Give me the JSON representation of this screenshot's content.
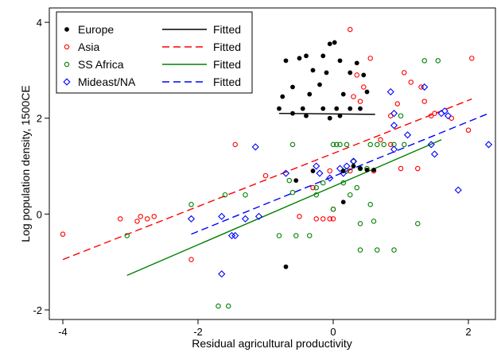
{
  "chart_data": {
    "type": "scatter",
    "xlabel": "Residual agricultural productivity",
    "ylabel": "Log population density, 1500CE",
    "xlim": [
      -4.2,
      2.4
    ],
    "ylim": [
      -2.2,
      4.3
    ],
    "xticks": [
      -4,
      -2,
      0,
      2
    ],
    "yticks": [
      -2,
      0,
      2,
      4
    ],
    "grid": false,
    "legend_position": "top-left",
    "legend": [
      {
        "marker_label": "Europe",
        "line_label": "Fitted"
      },
      {
        "marker_label": "Asia",
        "line_label": "Fitted"
      },
      {
        "marker_label": "SS Africa",
        "line_label": "Fitted"
      },
      {
        "marker_label": "Mideast/NA",
        "line_label": "Fitted"
      }
    ],
    "series": [
      {
        "name": "Europe",
        "marker": "filled-circle",
        "color": "#000000",
        "points": [
          [
            -0.05,
            3.55
          ],
          [
            0.02,
            3.58
          ],
          [
            -0.15,
            3.3
          ],
          [
            -0.4,
            3.3
          ],
          [
            -0.7,
            3.2
          ],
          [
            -0.5,
            3.25
          ],
          [
            0.1,
            3.2
          ],
          [
            0.35,
            3.15
          ],
          [
            -0.3,
            3.0
          ],
          [
            -0.1,
            2.95
          ],
          [
            0.25,
            2.95
          ],
          [
            0.45,
            2.9
          ],
          [
            -0.2,
            2.7
          ],
          [
            -0.6,
            2.65
          ],
          [
            -0.35,
            2.5
          ],
          [
            -0.75,
            2.45
          ],
          [
            0.15,
            2.5
          ],
          [
            0.5,
            2.55
          ],
          [
            -0.8,
            2.2
          ],
          [
            -0.45,
            2.2
          ],
          [
            -0.15,
            2.2
          ],
          [
            0.05,
            2.2
          ],
          [
            0.25,
            2.2
          ],
          [
            0.4,
            2.2
          ],
          [
            -0.6,
            2.1
          ],
          [
            -0.4,
            2.05
          ],
          [
            0.1,
            2.05
          ],
          [
            -0.05,
            2.0
          ],
          [
            0.3,
            1.0
          ],
          [
            0.4,
            0.95
          ],
          [
            0.5,
            0.92
          ],
          [
            0.6,
            0.92
          ],
          [
            0.15,
            0.9
          ],
          [
            -0.3,
            0.9
          ],
          [
            -0.55,
            0.7
          ],
          [
            0.15,
            0.25
          ],
          [
            -0.7,
            -1.1
          ]
        ]
      },
      {
        "name": "Asia",
        "marker": "hollow-circle",
        "color": "#ff0000",
        "points": [
          [
            0.25,
            3.85
          ],
          [
            0.55,
            3.25
          ],
          [
            2.05,
            3.25
          ],
          [
            0.35,
            2.9
          ],
          [
            1.05,
            2.95
          ],
          [
            1.15,
            2.75
          ],
          [
            0.45,
            2.65
          ],
          [
            1.3,
            2.65
          ],
          [
            0.3,
            2.45
          ],
          [
            0.95,
            2.3
          ],
          [
            0.4,
            2.35
          ],
          [
            1.35,
            2.35
          ],
          [
            0.85,
            2.05
          ],
          [
            1.5,
            2.1
          ],
          [
            1.45,
            2.05
          ],
          [
            2.0,
            1.75
          ],
          [
            1.75,
            2.0
          ],
          [
            -1.45,
            1.45
          ],
          [
            0.7,
            1.55
          ],
          [
            0.85,
            1.45
          ],
          [
            0.3,
            1.1
          ],
          [
            1.0,
            0.95
          ],
          [
            1.25,
            0.95
          ],
          [
            -0.05,
            0.9
          ],
          [
            0.25,
            0.9
          ],
          [
            -1.0,
            0.8
          ],
          [
            0.6,
            0.9
          ],
          [
            -0.3,
            0.55
          ],
          [
            0.0,
            0.1
          ],
          [
            -0.25,
            -0.1
          ],
          [
            -0.15,
            -0.1
          ],
          [
            -0.05,
            -0.1
          ],
          [
            0.0,
            -0.1
          ],
          [
            -0.5,
            -0.05
          ],
          [
            -2.1,
            -0.95
          ],
          [
            -2.85,
            -0.05
          ],
          [
            -2.75,
            -0.1
          ],
          [
            -2.65,
            -0.05
          ],
          [
            -2.9,
            -0.15
          ],
          [
            -3.15,
            -0.1
          ],
          [
            -4.0,
            -0.42
          ]
        ]
      },
      {
        "name": "SS Africa",
        "marker": "hollow-circle",
        "color": "#008000",
        "points": [
          [
            1.35,
            3.2
          ],
          [
            1.55,
            3.2
          ],
          [
            1.0,
            2.05
          ],
          [
            -0.6,
            1.45
          ],
          [
            0.0,
            1.45
          ],
          [
            0.05,
            1.45
          ],
          [
            0.1,
            1.45
          ],
          [
            0.2,
            1.45
          ],
          [
            0.55,
            1.45
          ],
          [
            0.65,
            1.45
          ],
          [
            0.75,
            1.45
          ],
          [
            0.9,
            1.45
          ],
          [
            1.05,
            1.45
          ],
          [
            0.3,
            1.1
          ],
          [
            0.4,
            0.95
          ],
          [
            0.2,
            0.9
          ],
          [
            0.5,
            0.95
          ],
          [
            -0.65,
            0.7
          ],
          [
            -0.15,
            0.65
          ],
          [
            -0.25,
            0.55
          ],
          [
            0.15,
            0.65
          ],
          [
            0.35,
            0.55
          ],
          [
            -2.1,
            0.2
          ],
          [
            -1.6,
            0.4
          ],
          [
            -1.3,
            0.4
          ],
          [
            -0.6,
            0.45
          ],
          [
            -0.25,
            0.4
          ],
          [
            0.25,
            0.4
          ],
          [
            0.55,
            0.2
          ],
          [
            0.0,
            0.1
          ],
          [
            0.6,
            -0.15
          ],
          [
            0.4,
            -0.2
          ],
          [
            1.25,
            -0.2
          ],
          [
            -0.8,
            -0.45
          ],
          [
            -0.55,
            -0.45
          ],
          [
            -0.35,
            -0.45
          ],
          [
            0.4,
            -0.75
          ],
          [
            0.65,
            -0.75
          ],
          [
            0.9,
            -0.75
          ],
          [
            -3.05,
            -0.45
          ],
          [
            -1.7,
            -1.92
          ],
          [
            -1.55,
            -1.92
          ]
        ]
      },
      {
        "name": "Mideast/NA",
        "marker": "hollow-diamond",
        "color": "#0000ff",
        "points": [
          [
            0.85,
            2.55
          ],
          [
            1.35,
            2.65
          ],
          [
            0.9,
            2.1
          ],
          [
            1.65,
            2.15
          ],
          [
            1.6,
            2.1
          ],
          [
            1.7,
            2.05
          ],
          [
            0.9,
            1.85
          ],
          [
            1.1,
            1.65
          ],
          [
            1.45,
            1.45
          ],
          [
            2.3,
            1.45
          ],
          [
            0.9,
            1.35
          ],
          [
            1.5,
            1.25
          ],
          [
            -1.15,
            1.4
          ],
          [
            0.3,
            1.1
          ],
          [
            -0.25,
            1.0
          ],
          [
            0.2,
            1.0
          ],
          [
            0.1,
            0.95
          ],
          [
            -0.2,
            0.85
          ],
          [
            0.15,
            0.85
          ],
          [
            -0.7,
            0.85
          ],
          [
            -0.05,
            0.75
          ],
          [
            -2.1,
            -0.1
          ],
          [
            -1.65,
            -0.05
          ],
          [
            -1.3,
            -0.1
          ],
          [
            -1.1,
            -0.05
          ],
          [
            -1.45,
            -0.45
          ],
          [
            -1.5,
            -0.45
          ],
          [
            1.85,
            0.5
          ],
          [
            -1.65,
            -1.25
          ]
        ]
      }
    ],
    "fitted_lines": [
      {
        "name": "Fitted",
        "group": "Europe",
        "color": "#000000",
        "dash": "solid",
        "x": [
          -0.8,
          0.62
        ],
        "y": [
          2.1,
          2.08
        ]
      },
      {
        "name": "Fitted",
        "group": "Asia",
        "color": "#ff0000",
        "dash": "dashed",
        "x": [
          -4.0,
          2.05
        ],
        "y": [
          -0.95,
          2.4
        ]
      },
      {
        "name": "Fitted",
        "group": "SS Africa",
        "color": "#008000",
        "dash": "solid",
        "x": [
          -3.05,
          1.6
        ],
        "y": [
          -1.28,
          1.55
        ]
      },
      {
        "name": "Fitted",
        "group": "Mideast/NA",
        "color": "#0000ff",
        "dash": "dashed",
        "x": [
          -2.1,
          2.3
        ],
        "y": [
          -0.42,
          2.1
        ]
      }
    ]
  }
}
